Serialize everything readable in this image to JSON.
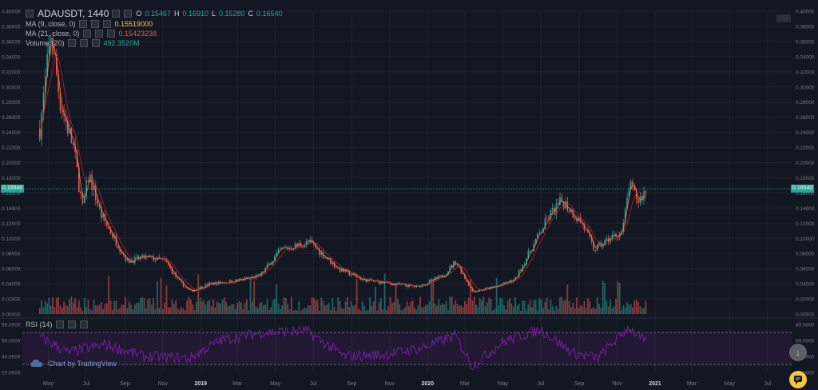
{
  "header": {
    "symbol": "ADAUSDT, 1440",
    "open_label": "O",
    "open": "0.15467",
    "high_label": "H",
    "high": "0.16910",
    "low_label": "L",
    "low": "0.15280",
    "close_label": "C",
    "close": "0.16540"
  },
  "indicators": {
    "ma9_label": "MA (9, close, 0)",
    "ma9_value": "0.15519000",
    "ma21_label": "MA (21, close, 0)",
    "ma21_value": "0.15423238",
    "volume_label": "Volume (20)",
    "volume_value": "492.3520M",
    "rsi_label": "RSI (14)"
  },
  "last_price": "0.16540",
  "branding": "Chart by TradingView",
  "colors": {
    "bg": "#131722",
    "up": "#26a69a",
    "down": "#ef5350",
    "ma9": "#f57f50",
    "ma21": "#b22833",
    "rsi": "#7b1fa2",
    "grid": "#1e222d"
  },
  "chart_data": [
    {
      "type": "candlestick",
      "title": "ADAUSDT, 1440",
      "x_ticks": [
        "May",
        "Jul",
        "Sep",
        "Nov",
        "2019",
        "Mar",
        "May",
        "Jul",
        "Sep",
        "Nov",
        "2020",
        "Mar",
        "May",
        "Jul",
        "Sep",
        "Nov",
        "2021",
        "Mar",
        "May",
        "Jul"
      ],
      "y_ticks": [
        "0.40000",
        "0.38000",
        "0.36000",
        "0.34000",
        "0.32000",
        "0.30000",
        "0.28000",
        "0.26000",
        "0.24000",
        "0.22000",
        "0.20000",
        "0.18000",
        "0.16000",
        "0.14000",
        "0.12000",
        "0.10000",
        "0.08000",
        "0.06000",
        "0.04000",
        "0.02000",
        "0.00000"
      ],
      "ylim": [
        0,
        0.4
      ],
      "series": [
        {
          "name": "ADAUSDT",
          "x": [
            "2018-04-17",
            "2018-04-28",
            "2018-05-05",
            "2018-05-20",
            "2018-06-10",
            "2018-06-25",
            "2018-07-05",
            "2018-07-25",
            "2018-08-15",
            "2018-09-05",
            "2018-10-05",
            "2018-11-05",
            "2018-11-25",
            "2018-12-15",
            "2019-01-15",
            "2019-02-20",
            "2019-04-05",
            "2019-05-10",
            "2019-06-25",
            "2019-08-10",
            "2019-09-20",
            "2019-11-05",
            "2019-12-15",
            "2020-01-25",
            "2020-02-15",
            "2020-03-13",
            "2020-04-15",
            "2020-05-20",
            "2020-06-15",
            "2020-07-15",
            "2020-08-05",
            "2020-09-05",
            "2020-09-25",
            "2020-10-20",
            "2020-11-10",
            "2020-11-20",
            "2020-12-05",
            "2020-12-19"
          ],
          "values": [
            0.245,
            0.32,
            0.37,
            0.28,
            0.22,
            0.14,
            0.185,
            0.13,
            0.1,
            0.07,
            0.075,
            0.07,
            0.045,
            0.03,
            0.04,
            0.043,
            0.05,
            0.085,
            0.095,
            0.06,
            0.045,
            0.04,
            0.036,
            0.05,
            0.07,
            0.03,
            0.035,
            0.045,
            0.085,
            0.13,
            0.15,
            0.12,
            0.085,
            0.1,
            0.11,
            0.17,
            0.15,
            0.165
          ]
        },
        {
          "name": "MA (9, close, 0)",
          "values": []
        },
        {
          "name": "MA (21, close, 0)",
          "values": []
        }
      ]
    },
    {
      "type": "bar",
      "title": "Volume (20)",
      "y_last": "492.3520M",
      "note": "volume bars along the bottom of the price pane, green/red by candle direction"
    },
    {
      "type": "line",
      "title": "RSI (14)",
      "y_ticks": [
        "80.0000",
        "60.0000",
        "40.0000",
        "20.0000"
      ],
      "ylim": [
        20,
        80
      ],
      "overbought": 70,
      "oversold": 30,
      "x": [
        "2018-04-17",
        "2018-06-01",
        "2018-08-01",
        "2018-10-01",
        "2018-12-15",
        "2019-02-01",
        "2019-04-10",
        "2019-06-20",
        "2019-08-20",
        "2019-10-20",
        "2019-12-20",
        "2020-02-15",
        "2020-03-13",
        "2020-05-01",
        "2020-07-01",
        "2020-08-20",
        "2020-10-01",
        "2020-11-20",
        "2020-12-19"
      ],
      "values": [
        65,
        45,
        55,
        40,
        38,
        60,
        70,
        72,
        40,
        42,
        50,
        66,
        28,
        58,
        74,
        45,
        38,
        77,
        55
      ]
    }
  ]
}
